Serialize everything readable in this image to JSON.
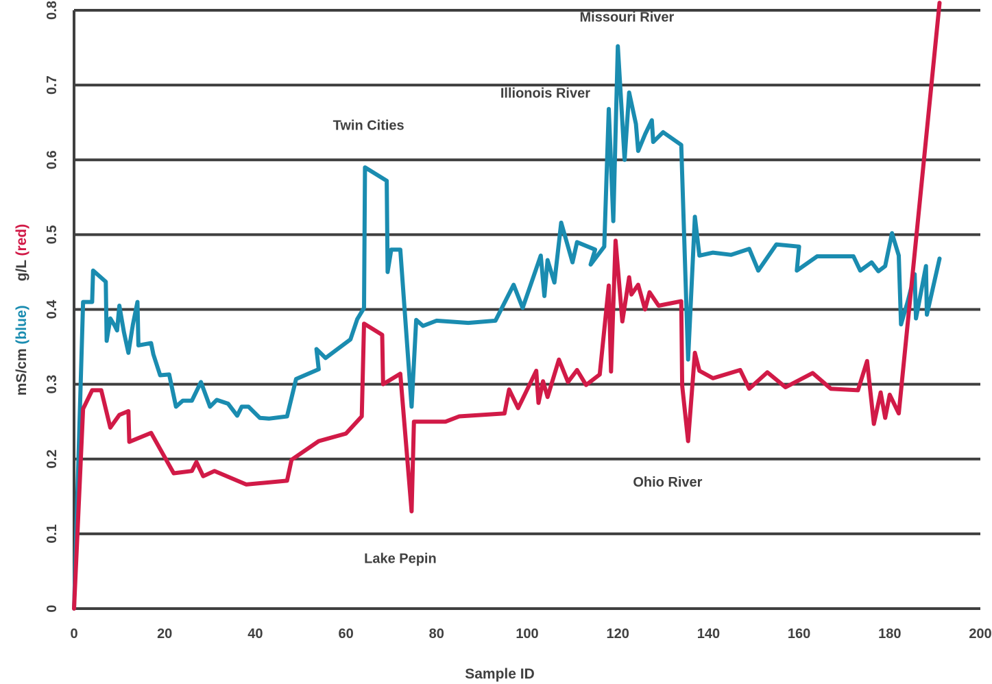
{
  "chart_data": {
    "type": "line",
    "xlabel": "Sample ID",
    "ylabel_parts": [
      {
        "text": "mS/cm ",
        "color": "#3f3f3f"
      },
      {
        "text": "(blue)",
        "color": "#1a8cb0"
      },
      {
        "text": "      g/L ",
        "color": "#3f3f3f"
      },
      {
        "text": "(red)",
        "color": "#d11a47"
      }
    ],
    "xlim": [
      0,
      200
    ],
    "ylim": [
      0,
      0.8
    ],
    "x_ticks": [
      "0",
      "20",
      "40",
      "60",
      "80",
      "100",
      "120",
      "140",
      "160",
      "180",
      "200"
    ],
    "y_ticks": [
      "0",
      "0.1",
      "0.2",
      "0.3",
      "0.4",
      "0.5",
      "0.6",
      "0.7",
      "0.8"
    ],
    "grid": "horizontal",
    "series": [
      {
        "color": "#1a8cb0",
        "points": [
          [
            0,
            0
          ],
          [
            2,
            0.41
          ],
          [
            4,
            0.41
          ],
          [
            4.2,
            0.452
          ],
          [
            7,
            0.437
          ],
          [
            7.2,
            0.358
          ],
          [
            8,
            0.388
          ],
          [
            9,
            0.378
          ],
          [
            9.5,
            0.372
          ],
          [
            10,
            0.405
          ],
          [
            11,
            0.37
          ],
          [
            12,
            0.342
          ],
          [
            13,
            0.38
          ],
          [
            14,
            0.41
          ],
          [
            14.2,
            0.352
          ],
          [
            17,
            0.355
          ],
          [
            17.5,
            0.34
          ],
          [
            19,
            0.312
          ],
          [
            21,
            0.313
          ],
          [
            22.5,
            0.27
          ],
          [
            24,
            0.278
          ],
          [
            26,
            0.278
          ],
          [
            28,
            0.303
          ],
          [
            30,
            0.27
          ],
          [
            31.5,
            0.279
          ],
          [
            34,
            0.274
          ],
          [
            36,
            0.258
          ],
          [
            37,
            0.27
          ],
          [
            38.5,
            0.27
          ],
          [
            41,
            0.255
          ],
          [
            43,
            0.254
          ],
          [
            47,
            0.257
          ],
          [
            49,
            0.307
          ],
          [
            54,
            0.32
          ],
          [
            53.5,
            0.347
          ],
          [
            55.5,
            0.335
          ],
          [
            61,
            0.36
          ],
          [
            62.5,
            0.387
          ],
          [
            64,
            0.402
          ],
          [
            64.2,
            0.59
          ],
          [
            69,
            0.572
          ],
          [
            69.2,
            0.45
          ],
          [
            70,
            0.48
          ],
          [
            72,
            0.48
          ],
          [
            74.5,
            0.27
          ],
          [
            75.5,
            0.386
          ],
          [
            77,
            0.378
          ],
          [
            80,
            0.385
          ],
          [
            87,
            0.382
          ],
          [
            93,
            0.385
          ],
          [
            97,
            0.433
          ],
          [
            99,
            0.402
          ],
          [
            103,
            0.472
          ],
          [
            103.8,
            0.418
          ],
          [
            104.5,
            0.466
          ],
          [
            106,
            0.436
          ],
          [
            107.5,
            0.516
          ],
          [
            110,
            0.463
          ],
          [
            111,
            0.49
          ],
          [
            115,
            0.48
          ],
          [
            114,
            0.46
          ],
          [
            117,
            0.484
          ],
          [
            118,
            0.668
          ],
          [
            119,
            0.518
          ],
          [
            120,
            0.752
          ],
          [
            121.5,
            0.6
          ],
          [
            122.5,
            0.69
          ],
          [
            124,
            0.648
          ],
          [
            124.5,
            0.612
          ],
          [
            126,
            0.634
          ],
          [
            127.5,
            0.653
          ],
          [
            127.8,
            0.624
          ],
          [
            130,
            0.637
          ],
          [
            134,
            0.62
          ],
          [
            135.5,
            0.333
          ],
          [
            137,
            0.524
          ],
          [
            138,
            0.472
          ],
          [
            141,
            0.476
          ],
          [
            145,
            0.473
          ],
          [
            149,
            0.481
          ],
          [
            151,
            0.452
          ],
          [
            155,
            0.487
          ],
          [
            160,
            0.484
          ],
          [
            159.5,
            0.452
          ],
          [
            164,
            0.471
          ],
          [
            172,
            0.471
          ],
          [
            173.5,
            0.452
          ],
          [
            176,
            0.463
          ],
          [
            177.5,
            0.451
          ],
          [
            179,
            0.458
          ],
          [
            180.5,
            0.502
          ],
          [
            182,
            0.472
          ],
          [
            182.5,
            0.38
          ],
          [
            184,
            0.411
          ],
          [
            185.5,
            0.447
          ],
          [
            185.8,
            0.388
          ],
          [
            188,
            0.458
          ],
          [
            188.2,
            0.393
          ],
          [
            191,
            0.468
          ]
        ]
      },
      {
        "color": "#d11a47",
        "points": [
          [
            0,
            0
          ],
          [
            2,
            0.267
          ],
          [
            4,
            0.292
          ],
          [
            6,
            0.292
          ],
          [
            8,
            0.242
          ],
          [
            10,
            0.259
          ],
          [
            12,
            0.264
          ],
          [
            12.2,
            0.223
          ],
          [
            17,
            0.235
          ],
          [
            22,
            0.181
          ],
          [
            26,
            0.184
          ],
          [
            27,
            0.196
          ],
          [
            28.5,
            0.177
          ],
          [
            31,
            0.184
          ],
          [
            38,
            0.166
          ],
          [
            47,
            0.171
          ],
          [
            48,
            0.199
          ],
          [
            54,
            0.224
          ],
          [
            60,
            0.234
          ],
          [
            63.5,
            0.257
          ],
          [
            64,
            0.381
          ],
          [
            68,
            0.366
          ],
          [
            68.2,
            0.3
          ],
          [
            72,
            0.314
          ],
          [
            74.5,
            0.13
          ],
          [
            75,
            0.25
          ],
          [
            82,
            0.25
          ],
          [
            85,
            0.257
          ],
          [
            95,
            0.261
          ],
          [
            96,
            0.293
          ],
          [
            98,
            0.268
          ],
          [
            102,
            0.318
          ],
          [
            102.5,
            0.275
          ],
          [
            103.5,
            0.304
          ],
          [
            104.5,
            0.283
          ],
          [
            107,
            0.333
          ],
          [
            109,
            0.303
          ],
          [
            111,
            0.319
          ],
          [
            113,
            0.299
          ],
          [
            116,
            0.313
          ],
          [
            118,
            0.432
          ],
          [
            118.5,
            0.317
          ],
          [
            119.5,
            0.492
          ],
          [
            121,
            0.384
          ],
          [
            122.5,
            0.443
          ],
          [
            123,
            0.42
          ],
          [
            124.5,
            0.433
          ],
          [
            126,
            0.4
          ],
          [
            127,
            0.423
          ],
          [
            129,
            0.405
          ],
          [
            134,
            0.411
          ],
          [
            134.2,
            0.298
          ],
          [
            135.5,
            0.224
          ],
          [
            137,
            0.342
          ],
          [
            138,
            0.318
          ],
          [
            141,
            0.308
          ],
          [
            147,
            0.319
          ],
          [
            149,
            0.294
          ],
          [
            153,
            0.316
          ],
          [
            157,
            0.296
          ],
          [
            163,
            0.315
          ],
          [
            167,
            0.294
          ],
          [
            173,
            0.292
          ],
          [
            175,
            0.331
          ],
          [
            176.5,
            0.247
          ],
          [
            178,
            0.289
          ],
          [
            179,
            0.255
          ],
          [
            180,
            0.286
          ],
          [
            182,
            0.261
          ],
          [
            191,
            0.81
          ]
        ]
      }
    ],
    "annotations": [
      {
        "text": "Missouri River",
        "x": 122,
        "y": 0.785
      },
      {
        "text": "Illionois River",
        "x": 104,
        "y": 0.683
      },
      {
        "text": "Twin Cities",
        "x": 65,
        "y": 0.64
      },
      {
        "text": "Ohio River",
        "x": 131,
        "y": 0.163
      },
      {
        "text": "Lake Pepin",
        "x": 72,
        "y": 0.061
      }
    ]
  }
}
